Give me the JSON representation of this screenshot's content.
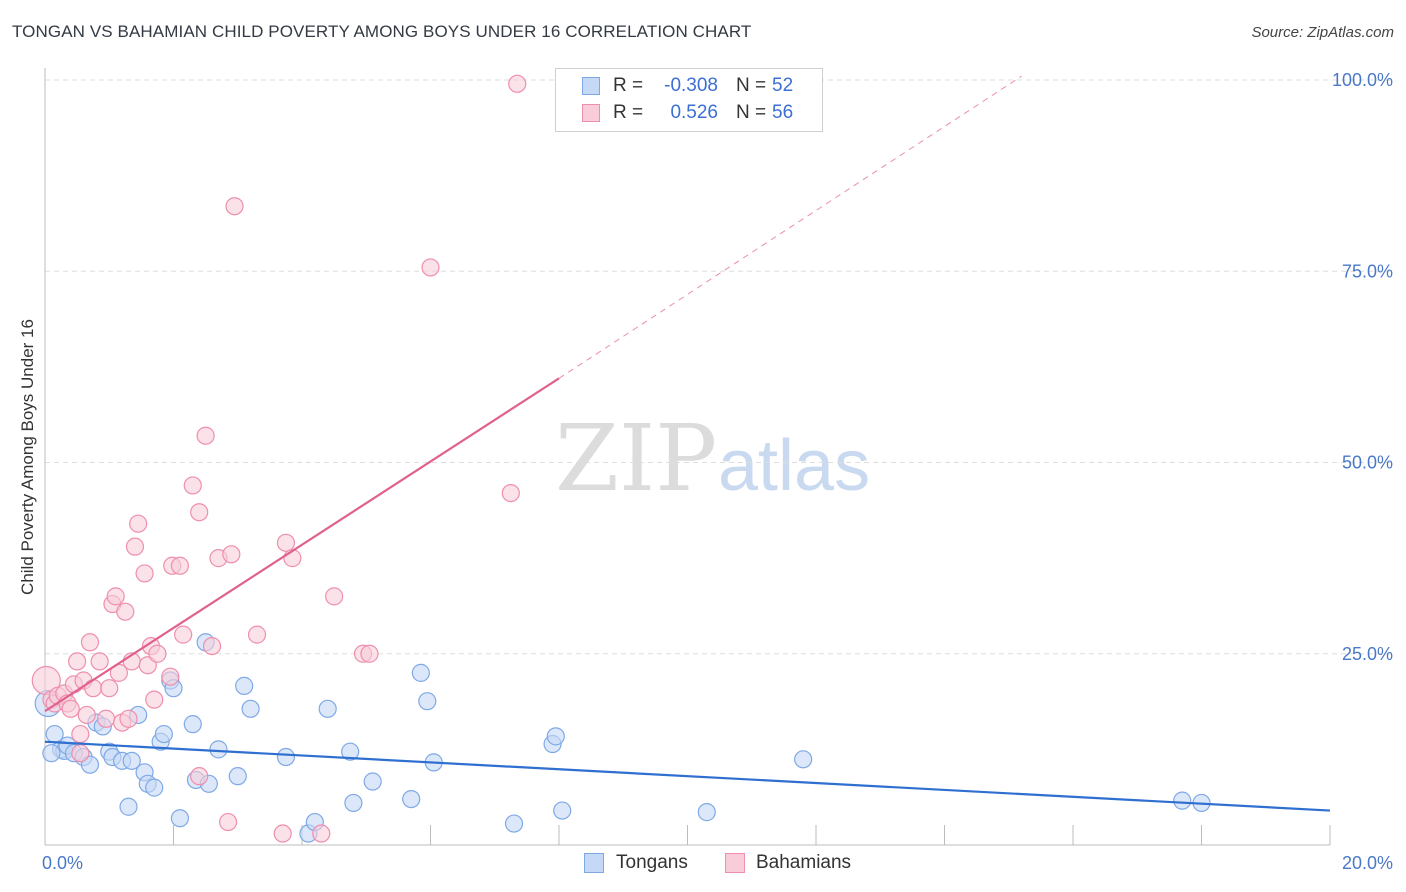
{
  "title": "TONGAN VS BAHAMIAN CHILD POVERTY AMONG BOYS UNDER 16 CORRELATION CHART",
  "source": "Source: ZipAtlas.com",
  "watermark": {
    "zip": "ZIP",
    "atlas": "atlas"
  },
  "legend": {
    "rows": [
      {
        "r_label": "R =",
        "r_value": "-0.308",
        "n_label": "N =",
        "n_value": "52",
        "color": "#7fa9e6",
        "fill": "#c5d8f5"
      },
      {
        "r_label": "R =",
        "r_value": "0.526",
        "n_label": "N =",
        "n_value": "56",
        "color": "#ee8fad",
        "fill": "#f8cdd9"
      }
    ]
  },
  "bottom_legend": [
    {
      "label": "Tongans",
      "color": "#7fa9e6",
      "fill": "#c5d8f5"
    },
    {
      "label": "Bahamians",
      "color": "#ee8fad",
      "fill": "#f8cdd9"
    }
  ],
  "chart_data": {
    "type": "scatter",
    "title": "TONGAN VS BAHAMIAN CHILD POVERTY AMONG BOYS UNDER 16 CORRELATION CHART",
    "xlabel": "",
    "ylabel": "Child Poverty Among Boys Under 16",
    "xlim": [
      0,
      20
    ],
    "ylim": [
      0,
      100
    ],
    "x_ticks": [
      {
        "value": 0,
        "label": "0.0%"
      },
      {
        "value": 20,
        "label": "20.0%"
      }
    ],
    "y_ticks": [
      {
        "value": 25,
        "label": "25.0%"
      },
      {
        "value": 50,
        "label": "50.0%"
      },
      {
        "value": 75,
        "label": "75.0%"
      },
      {
        "value": 100,
        "label": "100.0%"
      }
    ],
    "grid": true,
    "series": [
      {
        "name": "Tongans",
        "color": "#7fa9e6",
        "fill": "#c5d8f5",
        "trend_color": "#2f6fd0",
        "trend": {
          "x0": 0,
          "y0": 13.5,
          "x1": 20,
          "y1": 4.5,
          "dashed_from": null
        },
        "points": [
          [
            0.05,
            18.5
          ],
          [
            0.15,
            14.5
          ],
          [
            0.25,
            12.5
          ],
          [
            0.3,
            12.3
          ],
          [
            0.35,
            13.0
          ],
          [
            0.45,
            12.0
          ],
          [
            0.6,
            11.5
          ],
          [
            0.7,
            10.5
          ],
          [
            0.8,
            16.0
          ],
          [
            0.9,
            15.5
          ],
          [
            1.0,
            12.2
          ],
          [
            1.05,
            11.5
          ],
          [
            1.2,
            11.0
          ],
          [
            1.35,
            11.0
          ],
          [
            1.45,
            17.0
          ],
          [
            1.55,
            9.5
          ],
          [
            1.6,
            8.0
          ],
          [
            1.7,
            7.5
          ],
          [
            1.3,
            5.0
          ],
          [
            1.8,
            13.5
          ],
          [
            1.85,
            14.5
          ],
          [
            1.95,
            21.5
          ],
          [
            2.0,
            20.5
          ],
          [
            2.1,
            3.5
          ],
          [
            2.3,
            15.8
          ],
          [
            2.35,
            8.5
          ],
          [
            2.55,
            8.0
          ],
          [
            2.5,
            26.5
          ],
          [
            2.7,
            12.5
          ],
          [
            3.0,
            9.0
          ],
          [
            3.1,
            20.8
          ],
          [
            3.2,
            17.8
          ],
          [
            3.75,
            11.5
          ],
          [
            4.1,
            1.5
          ],
          [
            4.2,
            3.0
          ],
          [
            4.4,
            17.8
          ],
          [
            4.75,
            12.2
          ],
          [
            4.8,
            5.5
          ],
          [
            5.1,
            8.3
          ],
          [
            5.7,
            6.0
          ],
          [
            5.85,
            22.5
          ],
          [
            5.95,
            18.8
          ],
          [
            6.05,
            10.8
          ],
          [
            7.3,
            2.8
          ],
          [
            7.9,
            13.2
          ],
          [
            7.95,
            14.2
          ],
          [
            8.05,
            4.5
          ],
          [
            10.3,
            4.3
          ],
          [
            11.8,
            11.2
          ],
          [
            17.7,
            5.8
          ],
          [
            18.0,
            5.5
          ],
          [
            0.1,
            12.0
          ]
        ]
      },
      {
        "name": "Bahamians",
        "color": "#ee8fad",
        "fill": "#f8cdd9",
        "trend_color": "#e0608f",
        "trend": {
          "x0": 0,
          "y0": 17.5,
          "x1": 8.0,
          "y1": 61.0,
          "dashed_to_x": 15.2,
          "dashed_to_y": 100.5
        },
        "points": [
          [
            0.02,
            21.5
          ],
          [
            0.1,
            19.0
          ],
          [
            0.15,
            18.5
          ],
          [
            0.2,
            19.5
          ],
          [
            0.3,
            19.8
          ],
          [
            0.35,
            18.5
          ],
          [
            0.4,
            17.8
          ],
          [
            0.45,
            21.0
          ],
          [
            0.5,
            24.0
          ],
          [
            0.55,
            14.5
          ],
          [
            0.6,
            21.5
          ],
          [
            0.65,
            17.0
          ],
          [
            0.7,
            26.5
          ],
          [
            0.75,
            20.5
          ],
          [
            0.85,
            24.0
          ],
          [
            0.95,
            16.5
          ],
          [
            1.0,
            20.5
          ],
          [
            1.05,
            31.5
          ],
          [
            1.1,
            32.5
          ],
          [
            1.15,
            22.5
          ],
          [
            1.2,
            16.0
          ],
          [
            1.25,
            30.5
          ],
          [
            1.3,
            16.5
          ],
          [
            1.35,
            24.0
          ],
          [
            1.4,
            39.0
          ],
          [
            1.45,
            42.0
          ],
          [
            1.55,
            35.5
          ],
          [
            1.6,
            23.5
          ],
          [
            1.65,
            26.0
          ],
          [
            1.7,
            19.0
          ],
          [
            1.75,
            25.0
          ],
          [
            1.95,
            22.0
          ],
          [
            1.98,
            36.5
          ],
          [
            2.1,
            36.5
          ],
          [
            2.15,
            27.5
          ],
          [
            2.3,
            47.0
          ],
          [
            2.4,
            43.5
          ],
          [
            2.5,
            53.5
          ],
          [
            2.6,
            26.0
          ],
          [
            2.7,
            37.5
          ],
          [
            2.85,
            3.0
          ],
          [
            2.9,
            38.0
          ],
          [
            2.95,
            83.5
          ],
          [
            3.3,
            27.5
          ],
          [
            3.7,
            1.5
          ],
          [
            3.75,
            39.5
          ],
          [
            3.85,
            37.5
          ],
          [
            4.3,
            1.5
          ],
          [
            4.5,
            32.5
          ],
          [
            4.95,
            25.0
          ],
          [
            5.05,
            25.0
          ],
          [
            6.0,
            75.5
          ],
          [
            7.25,
            46.0
          ],
          [
            7.35,
            99.5
          ],
          [
            2.4,
            9.0
          ],
          [
            0.55,
            12.0
          ]
        ]
      }
    ]
  }
}
